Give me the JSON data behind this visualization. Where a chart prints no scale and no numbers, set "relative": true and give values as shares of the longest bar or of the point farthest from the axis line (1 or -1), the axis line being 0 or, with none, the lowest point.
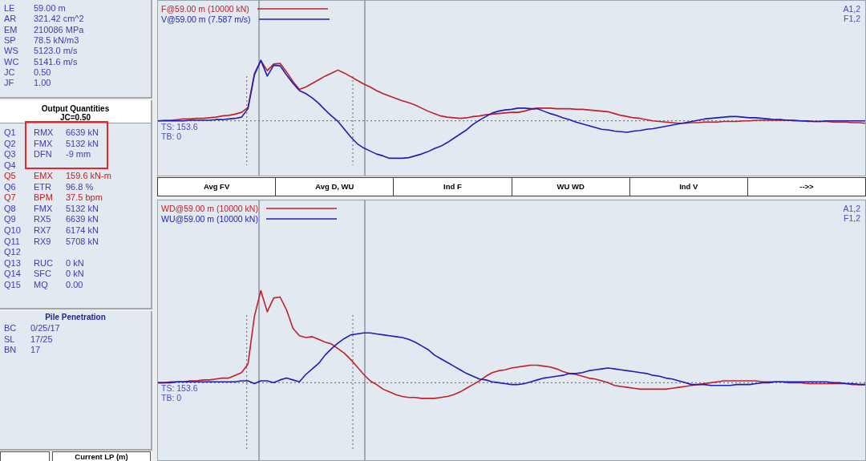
{
  "chart_data": [
    {
      "type": "other",
      "annotations": [
        "LE 59.00 m",
        "AR 321.42 cm^2",
        "EM 210086 MPa",
        "SP 78.5 kN/m3",
        "WS 5123.0 m/s",
        "WC 5141.6 m/s",
        "JC 0.50",
        "JF 1.00"
      ],
      "color": "#3c3cb4"
    },
    {
      "type": "other",
      "title": "Output Quantities",
      "subtitle": "JC=0.50",
      "annotations": [
        "Q1 RMX 6639 kN",
        "Q2 FMX 5132 kN",
        "Q3 DFN -9 mm",
        "Q4",
        "Q5 EMX 159.6 kN-m",
        "Q6 ETR 96.8 %",
        "Q7 BPM 37.5 bpm",
        "Q8 FMX 5132 kN",
        "Q9 RX5 6639 kN",
        "Q10 RX7 6174 kN",
        "Q11 RX9 5708 kN",
        "Q12",
        "Q13 RUC 0 kN",
        "Q14 SFC 0 kN",
        "Q15 MQ 0.00"
      ],
      "colors": [
        "#3c3cb4",
        "#3c3cb4",
        "#3c3cb4",
        "#3c3cb4",
        "#c02020",
        "#3c3cb4",
        "#c02020",
        "#3c3cb4",
        "#3c3cb4",
        "#3c3cb4",
        "#3c3cb4",
        "#3c3cb4",
        "#3c3cb4",
        "#3c3cb4",
        "#3c3cb4"
      ]
    },
    {
      "type": "other",
      "title": "Pile Penetration",
      "annotations": [
        "BC 0/25/17",
        "SL 17/25",
        "BN 17"
      ],
      "color": "#3c3cb4"
    },
    {
      "type": "other",
      "title": "Current LP (m)"
    },
    {
      "type": "line",
      "relative": true,
      "legend": "top left",
      "tick_labels": false,
      "marker": "none",
      "categories": [
        null,
        null,
        null,
        null,
        null,
        null,
        null,
        null,
        null,
        null,
        null,
        null,
        null,
        null,
        null,
        null,
        null,
        null,
        null,
        null,
        null,
        null,
        null,
        null,
        null,
        null,
        null,
        null,
        null,
        null,
        null,
        null,
        null,
        null,
        null,
        null,
        null,
        null,
        null,
        null,
        null,
        null,
        null,
        null,
        null,
        null,
        null,
        null,
        null,
        null,
        null,
        null,
        null,
        null,
        null,
        null,
        null,
        null,
        null,
        null,
        null,
        null,
        null,
        null,
        null,
        null,
        null,
        null,
        null,
        null,
        null,
        null,
        null,
        null,
        null,
        null,
        null,
        null,
        null,
        null,
        null,
        null,
        null,
        null,
        null,
        null,
        null,
        null,
        null,
        null,
        null,
        null,
        null,
        null,
        null,
        null,
        null,
        null,
        null,
        null,
        null,
        null,
        null,
        null,
        null,
        null,
        null,
        null,
        null,
        null,
        null
      ],
      "series": [
        {
          "name": "F@59.00 m (10000 kN)",
          "color": "#c0202c",
          "values": [
            0,
            0.01,
            0.01,
            0.02,
            0.03,
            0.03,
            0.04,
            0.04,
            0.05,
            0.06,
            0.08,
            0.09,
            0.11,
            0.14,
            0.22,
            0.78,
            1,
            0.83,
            0.94,
            0.95,
            0.81,
            0.65,
            0.52,
            0.56,
            0.62,
            0.68,
            0.74,
            0.79,
            0.84,
            0.79,
            0.73,
            0.67,
            0.61,
            0.56,
            0.5,
            0.45,
            0.41,
            0.37,
            0.33,
            0.3,
            0.26,
            0.21,
            0.16,
            0.12,
            0.08,
            0.06,
            0.05,
            0.04,
            0.05,
            0.07,
            0.08,
            0.1,
            0.11,
            0.12,
            0.13,
            0.14,
            0.14,
            0.16,
            0.19,
            0.21,
            0.21,
            0.21,
            0.2,
            0.2,
            0.2,
            0.19,
            0.19,
            0.18,
            0.17,
            0.16,
            0.15,
            0.12,
            0.09,
            0.07,
            0.05,
            0.04,
            0.02,
            0,
            -0.01,
            -0.02,
            -0.03,
            -0.04,
            -0.04,
            -0.03,
            -0.03,
            -0.02,
            -0.02,
            -0.02,
            -0.01,
            -0.01,
            -0.01,
            0,
            0,
            0.01,
            0.01,
            0.01,
            0.01,
            0.01,
            0.01,
            0,
            0,
            -0.01,
            -0.01,
            -0.01,
            -0.01,
            -0.02,
            -0.02,
            -0.02,
            -0.03,
            -0.03,
            -0.04
          ]
        },
        {
          "name": "V@59.00 m (7.587 m/s)",
          "color": "#1e1eb4",
          "values": [
            0,
            0,
            0,
            0,
            0,
            0.01,
            0.01,
            0.01,
            0.01,
            0.02,
            0.02,
            0.03,
            0.04,
            0.06,
            0.2,
            0.76,
            1,
            0.74,
            0.92,
            0.91,
            0.76,
            0.62,
            0.5,
            0.45,
            0.38,
            0.29,
            0.18,
            0.08,
            -0.01,
            -0.14,
            -0.27,
            -0.38,
            -0.45,
            -0.5,
            -0.55,
            -0.58,
            -0.62,
            -0.62,
            -0.62,
            -0.61,
            -0.58,
            -0.55,
            -0.51,
            -0.46,
            -0.42,
            -0.36,
            -0.29,
            -0.22,
            -0.15,
            -0.06,
            0.01,
            0.07,
            0.13,
            0.16,
            0.18,
            0.19,
            0.21,
            0.21,
            0.2,
            0.2,
            0.16,
            0.12,
            0.09,
            0.05,
            0.02,
            -0.02,
            -0.05,
            -0.08,
            -0.11,
            -0.14,
            -0.15,
            -0.17,
            -0.18,
            -0.19,
            -0.17,
            -0.16,
            -0.14,
            -0.13,
            -0.11,
            -0.09,
            -0.07,
            -0.05,
            -0.03,
            -0.01,
            0.01,
            0.03,
            0.04,
            0.05,
            0.06,
            0.07,
            0.07,
            0.06,
            0.05,
            0.05,
            0.04,
            0.03,
            0.02,
            0.02,
            0.01,
            0.01,
            0,
            0,
            -0.01,
            -0.01,
            0,
            0,
            0,
            0,
            0,
            0,
            0
          ]
        }
      ],
      "ref_lines": [
        {
          "axis": "y",
          "value": 0,
          "line_style": "dotted",
          "color": "#606060"
        }
      ],
      "annotations": [
        "TS: 153.6",
        "TB: 0",
        "A1,2",
        "F1,2"
      ]
    },
    {
      "type": "other",
      "annotations": [
        "Avg FV",
        "Avg D, WU",
        "Ind F",
        "WU WD",
        "Ind V",
        "-->>"
      ]
    },
    {
      "type": "line",
      "relative": true,
      "legend": "top left",
      "tick_labels": false,
      "marker": "none",
      "categories": [
        null,
        null,
        null,
        null,
        null,
        null,
        null,
        null,
        null,
        null,
        null,
        null,
        null,
        null,
        null,
        null,
        null,
        null,
        null,
        null,
        null,
        null,
        null,
        null,
        null,
        null,
        null,
        null,
        null,
        null,
        null,
        null,
        null,
        null,
        null,
        null,
        null,
        null,
        null,
        null,
        null,
        null,
        null,
        null,
        null,
        null,
        null,
        null,
        null,
        null,
        null,
        null,
        null,
        null,
        null,
        null,
        null,
        null,
        null,
        null,
        null,
        null,
        null,
        null,
        null,
        null,
        null,
        null,
        null,
        null,
        null,
        null,
        null,
        null,
        null,
        null,
        null,
        null,
        null,
        null,
        null,
        null,
        null,
        null,
        null,
        null,
        null,
        null,
        null,
        null,
        null,
        null,
        null,
        null,
        null,
        null,
        null,
        null,
        null,
        null,
        null,
        null,
        null,
        null,
        null,
        null,
        null,
        null,
        null,
        null,
        null
      ],
      "series": [
        {
          "name": "WD@59.00 m (10000 kN)",
          "color": "#c0202c",
          "values": [
            0,
            0,
            0.01,
            0.01,
            0.01,
            0.02,
            0.02,
            0.03,
            0.03,
            0.04,
            0.05,
            0.05,
            0.08,
            0.11,
            0.2,
            0.72,
            1,
            0.77,
            0.92,
            0.93,
            0.79,
            0.59,
            0.51,
            0.49,
            0.5,
            0.47,
            0.44,
            0.42,
            0.37,
            0.32,
            0.25,
            0.17,
            0.09,
            0.02,
            -0.02,
            -0.07,
            -0.1,
            -0.13,
            -0.15,
            -0.16,
            -0.16,
            -0.17,
            -0.17,
            -0.17,
            -0.16,
            -0.15,
            -0.13,
            -0.1,
            -0.06,
            -0.02,
            0.02,
            0.07,
            0.11,
            0.13,
            0.14,
            0.16,
            0.17,
            0.18,
            0.19,
            0.19,
            0.18,
            0.17,
            0.15,
            0.12,
            0.1,
            0.09,
            0.07,
            0.05,
            0.04,
            0.02,
            0,
            -0.03,
            -0.04,
            -0.05,
            -0.06,
            -0.07,
            -0.07,
            -0.07,
            -0.07,
            -0.07,
            -0.06,
            -0.05,
            -0.04,
            -0.03,
            -0.02,
            -0.01,
            0,
            0.01,
            0.02,
            0.02,
            0.02,
            0.02,
            0.02,
            0.02,
            0.01,
            0.01,
            0.01,
            0.01,
            0,
            0,
            0,
            -0.01,
            -0.01,
            -0.01,
            -0.01,
            -0.01,
            -0.01,
            -0.01,
            -0.02,
            -0.02,
            -0.02
          ]
        },
        {
          "name": "WU@59.00 m (10000 kN)",
          "color": "#1e1eb4",
          "values": [
            0,
            0,
            0,
            0.01,
            0.01,
            0.01,
            0.01,
            0.01,
            0.01,
            0.01,
            0.01,
            0.01,
            0.01,
            0.02,
            0.02,
            -0.01,
            0.02,
            0.02,
            0,
            0.03,
            0.05,
            0.03,
            0.01,
            0.09,
            0.15,
            0.21,
            0.3,
            0.37,
            0.43,
            0.48,
            0.52,
            0.53,
            0.54,
            0.54,
            0.53,
            0.52,
            0.51,
            0.5,
            0.49,
            0.47,
            0.44,
            0.4,
            0.36,
            0.3,
            0.26,
            0.22,
            0.18,
            0.14,
            0.1,
            0.07,
            0.04,
            0.03,
            0.01,
            0,
            -0.01,
            -0.02,
            -0.02,
            -0.01,
            0.01,
            0.03,
            0.05,
            0.06,
            0.07,
            0.08,
            0.1,
            0.1,
            0.11,
            0.13,
            0.14,
            0.15,
            0.16,
            0.15,
            0.14,
            0.13,
            0.12,
            0.11,
            0.1,
            0.08,
            0.07,
            0.05,
            0.04,
            0.02,
            0,
            -0.02,
            -0.02,
            -0.02,
            -0.03,
            -0.03,
            -0.03,
            -0.03,
            -0.02,
            -0.02,
            -0.02,
            -0.01,
            0,
            0,
            0.01,
            0.01,
            0.01,
            0.01,
            0.01,
            0.01,
            0.01,
            0.01,
            0.01,
            0,
            0,
            -0.01,
            -0.01,
            -0.02,
            -0.02
          ]
        }
      ],
      "ref_lines": [
        {
          "axis": "y",
          "value": 0,
          "line_style": "dotted",
          "color": "#606060"
        }
      ],
      "annotations": [
        "TS: 153.6",
        "TB: 0",
        "A1,2",
        "F1,2"
      ]
    }
  ]
}
